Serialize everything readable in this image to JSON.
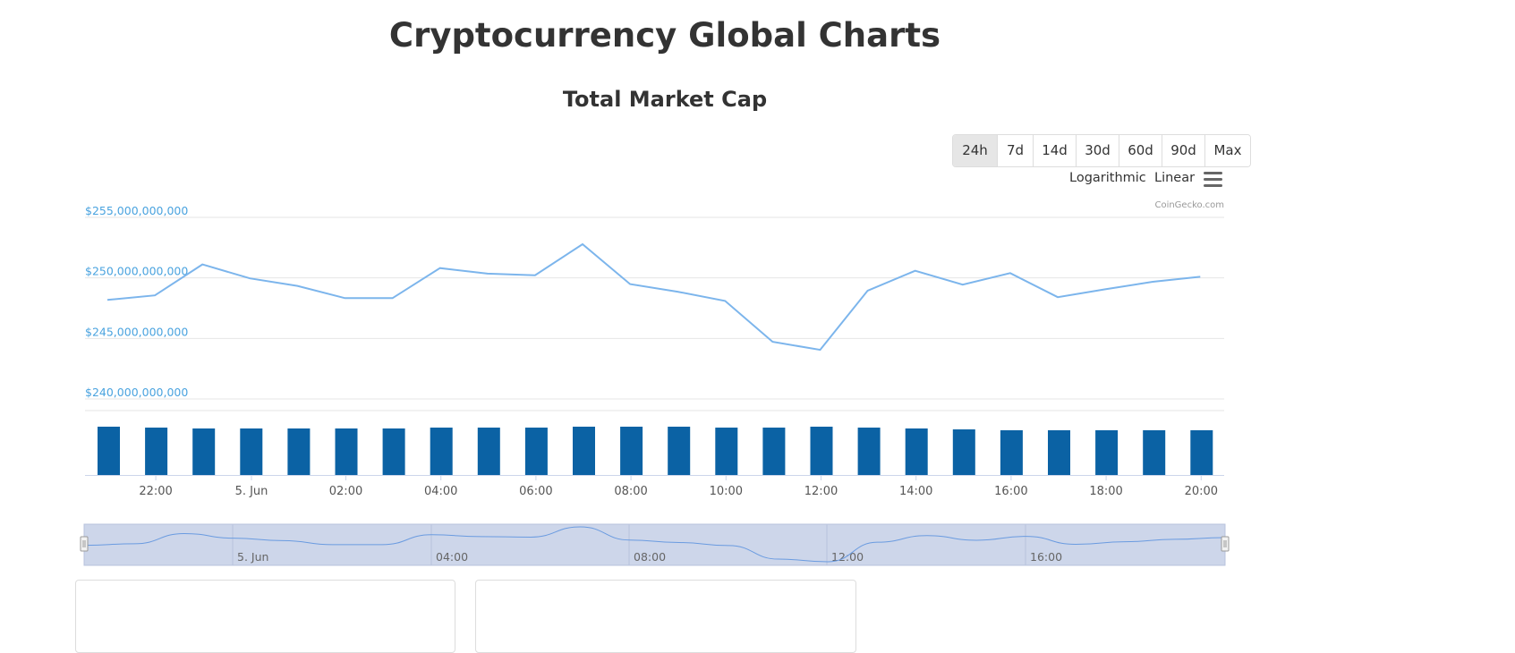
{
  "page": {
    "title": "Cryptocurrency Global Charts"
  },
  "range_buttons": [
    {
      "label": "24h",
      "active": true
    },
    {
      "label": "7d"
    },
    {
      "label": "14d"
    },
    {
      "label": "30d"
    },
    {
      "label": "60d"
    },
    {
      "label": "90d"
    },
    {
      "label": "Max"
    }
  ],
  "scale_options": {
    "log_label": "Logarithmic",
    "linear_label": "Linear"
  },
  "menu": {
    "icon": "hamburger-menu-icon"
  },
  "colors": {
    "line": "#7cb5ec",
    "bars": "#0b62a4",
    "y_labels": "#4aa3df",
    "navigator_fill": "#cdd6ea",
    "navigator_line": "#6a9be0"
  },
  "chart_data": {
    "type": "line",
    "title": "Total Market Cap",
    "credits": "CoinGecko.com",
    "x_labels": [
      "22:00",
      "5. Jun",
      "02:00",
      "04:00",
      "06:00",
      "08:00",
      "10:00",
      "12:00",
      "14:00",
      "16:00",
      "18:00",
      "20:00"
    ],
    "y_ticks": [
      "$255,000,000,000",
      "$250,000,000,000",
      "$245,000,000,000",
      "$240,000,000,000"
    ],
    "ylim": [
      240000000000,
      255000000000
    ],
    "x_hours": [
      -3.0,
      -2.0,
      -1.0,
      0.0,
      1.0,
      2.0,
      3.0,
      4.0,
      5.0,
      6.0,
      7.0,
      8.0,
      9.0,
      10.0,
      11.0,
      12.0,
      13.0,
      14.0,
      15.0,
      16.0,
      17.0,
      18.0,
      19.0,
      20.0
    ],
    "series": [
      {
        "type": "line",
        "values": [
          248180000000,
          248560000000,
          251110000000,
          249960000000,
          249340000000,
          248330000000,
          248330000000,
          250810000000,
          250350000000,
          250220000000,
          252780000000,
          249490000000,
          248860000000,
          248100000000,
          244720000000,
          244060000000,
          248950000000,
          250590000000,
          249440000000,
          250400000000,
          248410000000,
          249060000000,
          249680000000,
          250090000000
        ]
      },
      {
        "type": "bar",
        "values": [
          1.0,
          0.981,
          0.963,
          0.963,
          0.963,
          0.963,
          0.963,
          0.981,
          0.981,
          0.981,
          1.0,
          1.0,
          1.0,
          0.981,
          0.981,
          1.0,
          0.981,
          0.963,
          0.944,
          0.926,
          0.926,
          0.926,
          0.926,
          0.926
        ]
      }
    ],
    "navigator": {
      "x_labels": [
        "5. Jun",
        "04:00",
        "08:00",
        "12:00",
        "16:00"
      ]
    }
  }
}
